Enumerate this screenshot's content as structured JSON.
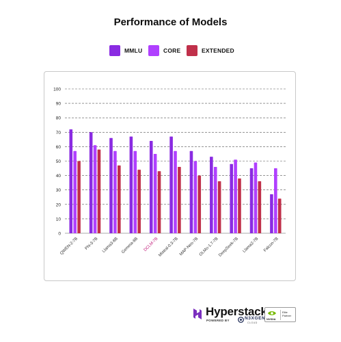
{
  "chart_data": {
    "type": "bar",
    "title": "Performance of Models",
    "categories": [
      "QWEN-2-7B",
      "Phi-3-7B",
      "Llama3-8B",
      "Gemma-8B",
      "DCLM-7B",
      "Mistral-0.3-7B",
      "MAP-Neo-7B",
      "OLMo-1.7-7B",
      "DeepSeek-7B",
      "Llama2-7B",
      "Falcon-7B"
    ],
    "highlight_category": "DCLM-7B",
    "series": [
      {
        "name": "MMLU",
        "color": "#8a2be2",
        "values": [
          72,
          70,
          66,
          67,
          64,
          67,
          57,
          53,
          48,
          45,
          27
        ]
      },
      {
        "name": "CORE",
        "color": "#b040ff",
        "values": [
          57,
          61,
          57,
          57,
          55,
          57,
          50,
          46,
          51,
          49,
          45
        ]
      },
      {
        "name": "EXTENDED",
        "color": "#c0304a",
        "values": [
          50,
          58,
          47,
          44,
          43,
          46,
          40,
          36,
          38,
          36,
          24
        ]
      }
    ],
    "yticks": [
      0,
      10,
      20,
      30,
      40,
      50,
      60,
      70,
      80,
      90,
      100
    ],
    "ylim": [
      0,
      100
    ],
    "xlabel": "",
    "ylabel": "",
    "grid": "horizontal dashed",
    "legend_position": "top-center",
    "colors": {
      "axis_label_highlight": "#c01878",
      "grid": "#555555",
      "frame_border": "#c8c8c8"
    }
  },
  "branding": {
    "name": "Hyperstack",
    "powered_by": "POWERED BY",
    "partner_company": "N3XGEN",
    "partner_company_sub": "CLOUD",
    "nvidia_label": "NVIDIA",
    "partner_badge": [
      "Elite",
      "Partner"
    ],
    "logo_color": "#7b2fbf",
    "nvidia_color": "#76b900"
  }
}
